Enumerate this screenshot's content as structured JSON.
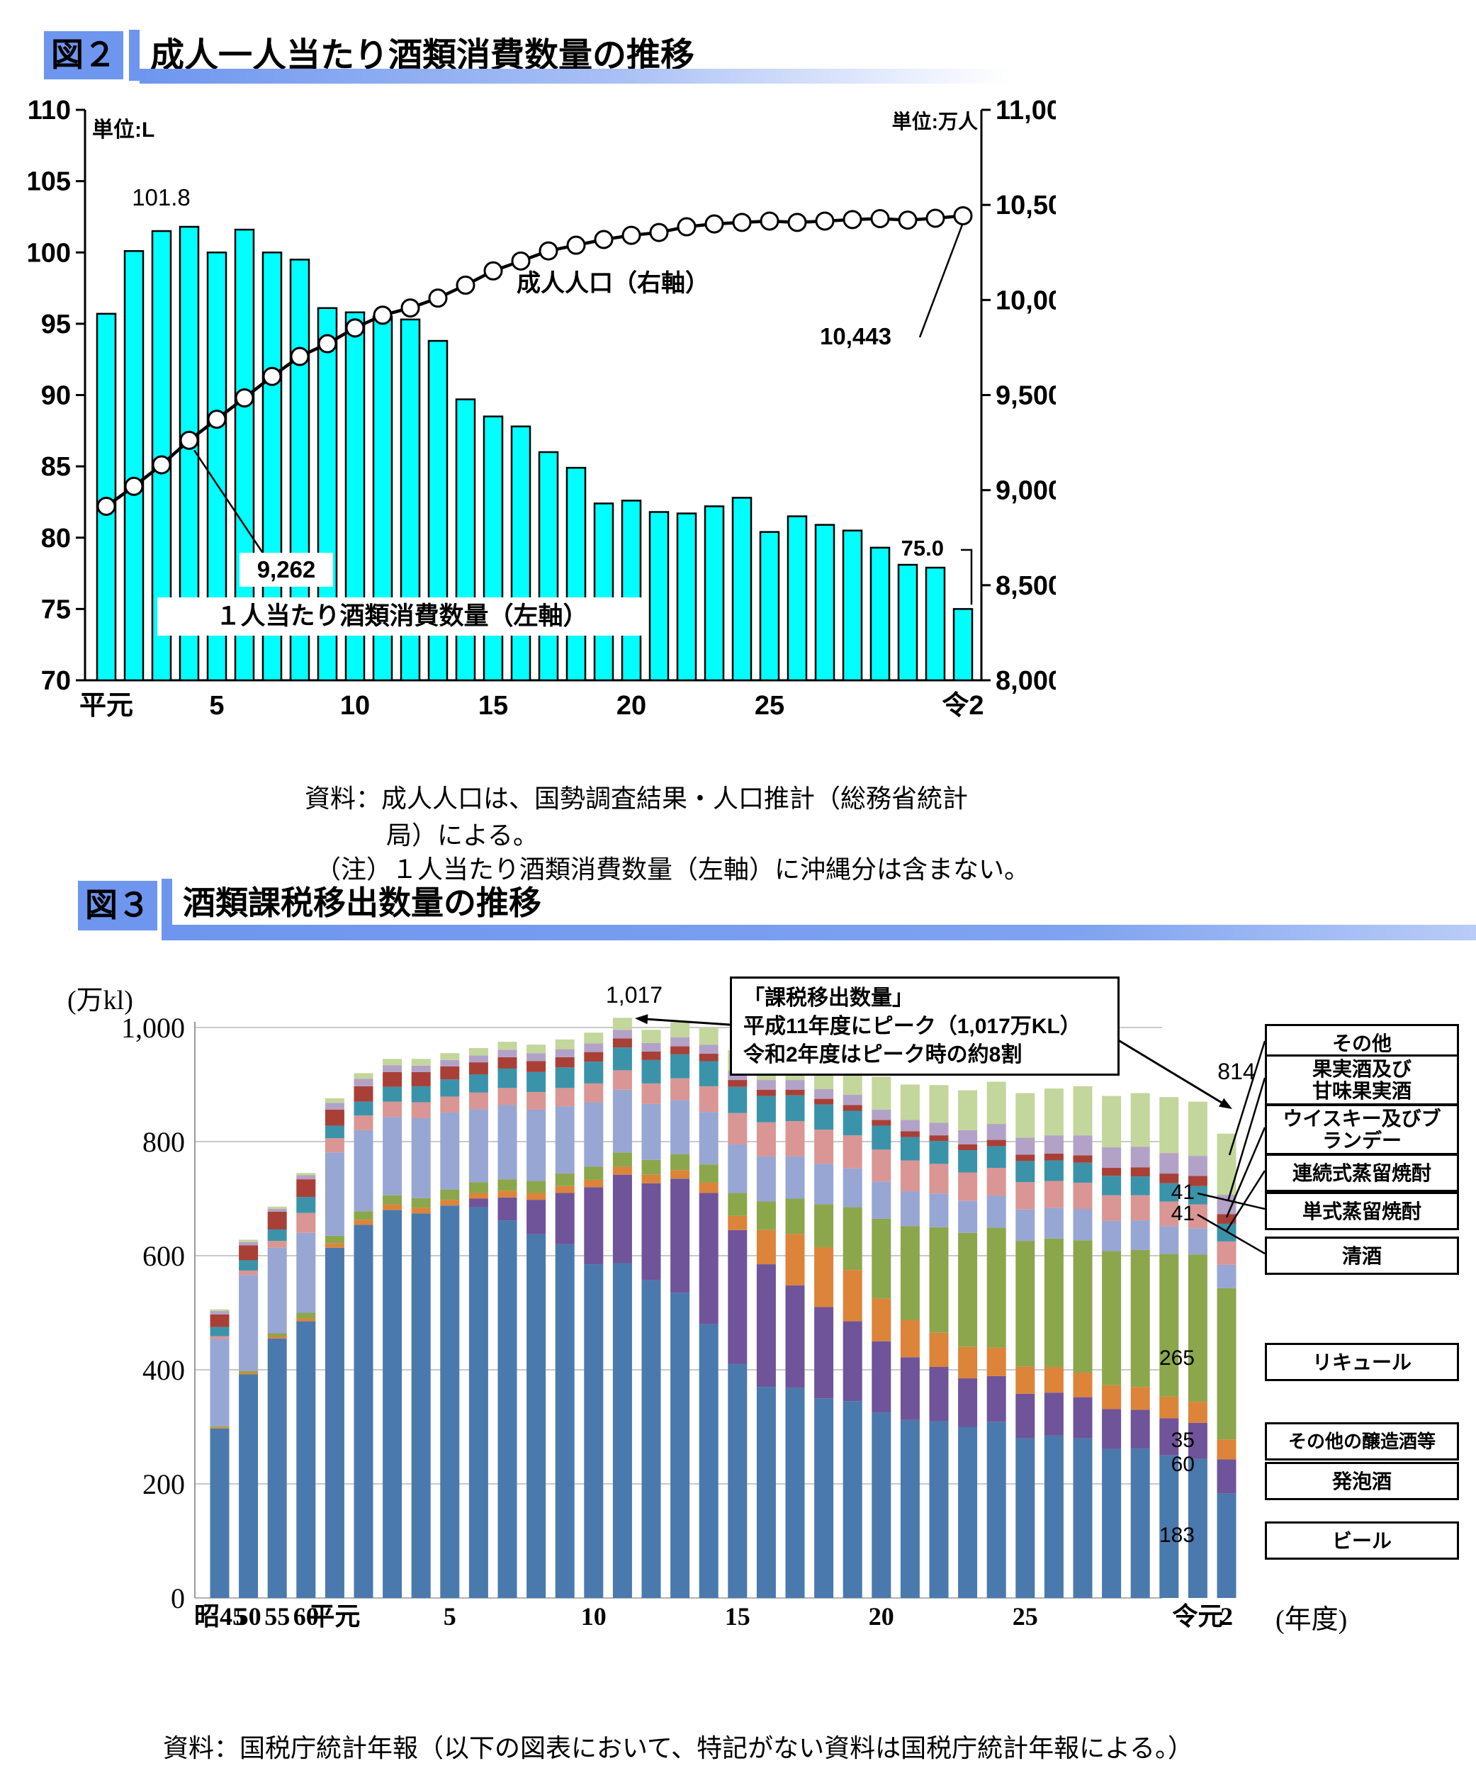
{
  "fig2": {
    "tag": "図２",
    "title": "成人一人当たり酒類消費数量の推移",
    "unit_left": "単位:L",
    "unit_right": "単位:万人",
    "line_series_label": "成人人口（右軸）",
    "bar_series_label": "１人当たり酒類消費数量（左軸）",
    "peak_label": "101.8",
    "pop_1992_label": "9,262",
    "pop_2020_label": "10,443",
    "last_bar_label": "75.0"
  },
  "fig2_notes": {
    "line1": "資料：成人人口は、国勢調査結果・人口推計（総務省統計",
    "line2": "局）による。",
    "line3": "（注）１人当たり酒類消費数量（左軸）に沖縄分は含まない。"
  },
  "fig3": {
    "tag": "図３",
    "title": "酒類課税移出数量の推移",
    "ylabel": "(万kl)",
    "xlabel_suffix": "(年度)",
    "callout": {
      "line1": "「課税移出数量」",
      "line2": "平成11年度にピーク（1,017万KL）",
      "line3": "令和2年度はピーク時の約8割"
    },
    "peak_value_label": "1,017",
    "last_total_label": "814",
    "value_labels": {
      "tanshiki": "41",
      "seishu": "41",
      "liqueur": "265",
      "other_brewed": "35",
      "happoshu": "60",
      "beer": "183"
    },
    "legend": [
      "その他",
      "果実酒及び\n甘味果実酒",
      "ウイスキー及びブ\nランデー",
      "連続式蒸留焼酎",
      "単式蒸留焼酎",
      "清酒",
      "リキュール",
      "その他の醸造酒等",
      "発泡酒",
      "ビール"
    ]
  },
  "source": "資料：国税庁統計年報（以下の図表において、特記がない資料は国税庁統計年報による。）",
  "chart_data": [
    {
      "type": "bar+line",
      "title": "成人一人当たり酒類消費数量の推移",
      "x_years": [
        "平元",
        "平2",
        "平3",
        "平4",
        "平5",
        "平6",
        "平7",
        "平8",
        "平9",
        "平10",
        "平11",
        "平12",
        "平13",
        "平14",
        "平15",
        "平16",
        "平17",
        "平18",
        "平19",
        "平20",
        "平21",
        "平22",
        "平23",
        "平24",
        "平25",
        "平26",
        "平27",
        "平28",
        "平29",
        "平30",
        "令元",
        "令2"
      ],
      "x_axis_labels": [
        [
          0,
          "平元"
        ],
        [
          4,
          "5"
        ],
        [
          9,
          "10"
        ],
        [
          14,
          "15"
        ],
        [
          19,
          "20"
        ],
        [
          24,
          "25"
        ],
        [
          31,
          "令2"
        ]
      ],
      "bar_series": {
        "name": "１人当たり酒類消費数量（左軸）",
        "unit": "L",
        "axis": "left",
        "ylim": [
          70,
          110
        ],
        "yticks": [
          "110",
          "105",
          "100",
          "95",
          "90",
          "85",
          "80",
          "75",
          "70"
        ],
        "color": "#00ffff",
        "values": [
          95.7,
          100.1,
          101.5,
          101.8,
          100.0,
          101.6,
          100.0,
          99.5,
          96.1,
          95.8,
          95.5,
          95.3,
          93.8,
          89.7,
          88.5,
          87.8,
          86.0,
          84.9,
          82.4,
          82.6,
          81.8,
          81.7,
          82.2,
          82.8,
          80.4,
          81.5,
          80.9,
          80.5,
          79.3,
          78.1,
          77.9,
          75.0
        ]
      },
      "line_series": {
        "name": "成人人口（右軸）",
        "unit": "万人",
        "axis": "right",
        "ylim": [
          8000,
          11000
        ],
        "yticks": [
          "11,000",
          "10,500",
          "10,000",
          "9,500",
          "9,000",
          "8,500",
          "8,000"
        ],
        "color": "#000000",
        "values": [
          8915,
          9020,
          9133,
          9262,
          9373,
          9485,
          9598,
          9703,
          9770,
          9853,
          9920,
          9958,
          10010,
          10078,
          10153,
          10205,
          10258,
          10288,
          10318,
          10340,
          10355,
          10385,
          10400,
          10408,
          10415,
          10408,
          10415,
          10423,
          10428,
          10420,
          10430,
          10443
        ]
      },
      "annotations": {
        "peak_bar_index": 3,
        "peak_bar_value": "101.8",
        "pop_label_index": 3,
        "pop_label_value": "9,262",
        "pop_end_value": "10,443",
        "last_bar_value": "75.0"
      }
    },
    {
      "type": "stacked-bar",
      "title": "酒類課税移出数量の推移",
      "ylabel": "(万kl)",
      "ylim": [
        0,
        1000
      ],
      "yticks": [
        "1,000",
        "800",
        "600",
        "400",
        "200",
        "0"
      ],
      "x_years": [
        "昭45",
        "昭50",
        "昭55",
        "昭60",
        "平元",
        "平2",
        "平3",
        "平4",
        "平5",
        "平6",
        "平7",
        "平8",
        "平9",
        "平10",
        "平11",
        "平12",
        "平13",
        "平14",
        "平15",
        "平16",
        "平17",
        "平18",
        "平19",
        "平20",
        "平21",
        "平22",
        "平23",
        "平24",
        "平25",
        "平26",
        "平27",
        "平28",
        "平29",
        "平30",
        "令元",
        "令2"
      ],
      "x_axis_labels": [
        [
          0,
          "昭45"
        ],
        [
          1,
          "50"
        ],
        [
          2,
          "55"
        ],
        [
          3,
          "60"
        ],
        [
          4,
          "平元"
        ],
        [
          8,
          "5"
        ],
        [
          13,
          "10"
        ],
        [
          18,
          "15"
        ],
        [
          23,
          "20"
        ],
        [
          28,
          "25"
        ],
        [
          34,
          "令元"
        ],
        [
          35,
          "2"
        ]
      ],
      "peak": {
        "year": "平11",
        "total": 1017
      },
      "last": {
        "year": "令2",
        "total": 814
      },
      "series": [
        {
          "name": "ビール",
          "color": "#4a79ad",
          "values": [
            297,
            392,
            455,
            485,
            614,
            654,
            680,
            674,
            688,
            685,
            662,
            638,
            620,
            585,
            587,
            557,
            535,
            480,
            410,
            370,
            368,
            350,
            345,
            325,
            312,
            310,
            300,
            309,
            280,
            285,
            280,
            261,
            262,
            250,
            244,
            183
          ]
        },
        {
          "name": "発泡酒",
          "color": "#6f5499",
          "values": [
            0,
            0,
            0,
            0,
            0,
            0,
            0,
            0,
            0,
            15,
            40,
            60,
            90,
            135,
            155,
            170,
            200,
            230,
            235,
            215,
            180,
            160,
            140,
            125,
            110,
            95,
            85,
            80,
            78,
            75,
            72,
            70,
            68,
            65,
            63,
            60
          ]
        },
        {
          "name": "その他の醸造酒等",
          "color": "#dc8439",
          "values": [
            2,
            3,
            4,
            5,
            8,
            9,
            10,
            10,
            10,
            10,
            12,
            12,
            12,
            13,
            14,
            15,
            15,
            18,
            25,
            60,
            90,
            105,
            90,
            75,
            65,
            60,
            55,
            50,
            48,
            45,
            43,
            42,
            40,
            38,
            37,
            35
          ]
        },
        {
          "name": "リキュール",
          "color": "#8ca64c",
          "values": [
            2,
            3,
            5,
            10,
            13,
            15,
            16,
            17,
            18,
            19,
            20,
            21,
            22,
            23,
            25,
            26,
            28,
            32,
            40,
            50,
            62,
            75,
            110,
            140,
            165,
            185,
            200,
            210,
            220,
            225,
            232,
            235,
            240,
            250,
            258,
            265
          ]
        },
        {
          "name": "清酒",
          "color": "#98a6d4",
          "values": [
            153,
            168,
            150,
            140,
            146,
            142,
            137,
            140,
            135,
            128,
            130,
            125,
            118,
            113,
            110,
            98,
            95,
            92,
            85,
            79,
            74,
            71,
            68,
            65,
            61,
            59,
            56,
            56,
            55,
            54,
            55,
            53,
            52,
            49,
            46,
            41
          ]
        },
        {
          "name": "単式蒸留焼酎",
          "color": "#d99694",
          "values": [
            5,
            8,
            12,
            35,
            25,
            26,
            27,
            28,
            28,
            29,
            30,
            31,
            32,
            33,
            34,
            36,
            38,
            45,
            55,
            60,
            62,
            60,
            58,
            56,
            54,
            52,
            50,
            49,
            48,
            47,
            46,
            45,
            44,
            43,
            42,
            41
          ]
        },
        {
          "name": "連続式蒸留焼酎",
          "color": "#3b93aa",
          "values": [
            16,
            18,
            20,
            28,
            22,
            24,
            26,
            28,
            30,
            32,
            34,
            35,
            36,
            38,
            40,
            41,
            42,
            44,
            46,
            46,
            45,
            44,
            43,
            42,
            41,
            40,
            39,
            38,
            37,
            36,
            35,
            34,
            33,
            32,
            32,
            31
          ]
        },
        {
          "name": "ウイスキー及びブランデー",
          "color": "#a84038",
          "values": [
            22,
            26,
            31,
            31,
            28,
            27,
            26,
            25,
            23,
            21,
            20,
            19,
            18,
            17,
            16,
            15,
            14,
            13,
            12,
            11,
            10,
            10,
            10,
            10,
            10,
            10,
            10,
            11,
            11,
            12,
            13,
            14,
            16,
            17,
            18,
            17
          ]
        },
        {
          "name": "果実酒及び甘味果実酒",
          "color": "#b3a2c7",
          "values": [
            6,
            6,
            5,
            7,
            12,
            13,
            12,
            11,
            11,
            12,
            13,
            14,
            14,
            15,
            15,
            15,
            16,
            16,
            17,
            17,
            17,
            17,
            18,
            18,
            20,
            22,
            25,
            28,
            30,
            32,
            35,
            36,
            36,
            36,
            35,
            34
          ]
        },
        {
          "name": "その他",
          "color": "#c3d69b",
          "values": [
            3,
            4,
            4,
            4,
            8,
            10,
            11,
            12,
            12,
            13,
            14,
            15,
            17,
            19,
            21,
            23,
            26,
            30,
            35,
            40,
            45,
            50,
            55,
            58,
            62,
            66,
            70,
            74,
            78,
            82,
            86,
            90,
            94,
            98,
            95,
            107
          ]
        }
      ]
    }
  ]
}
